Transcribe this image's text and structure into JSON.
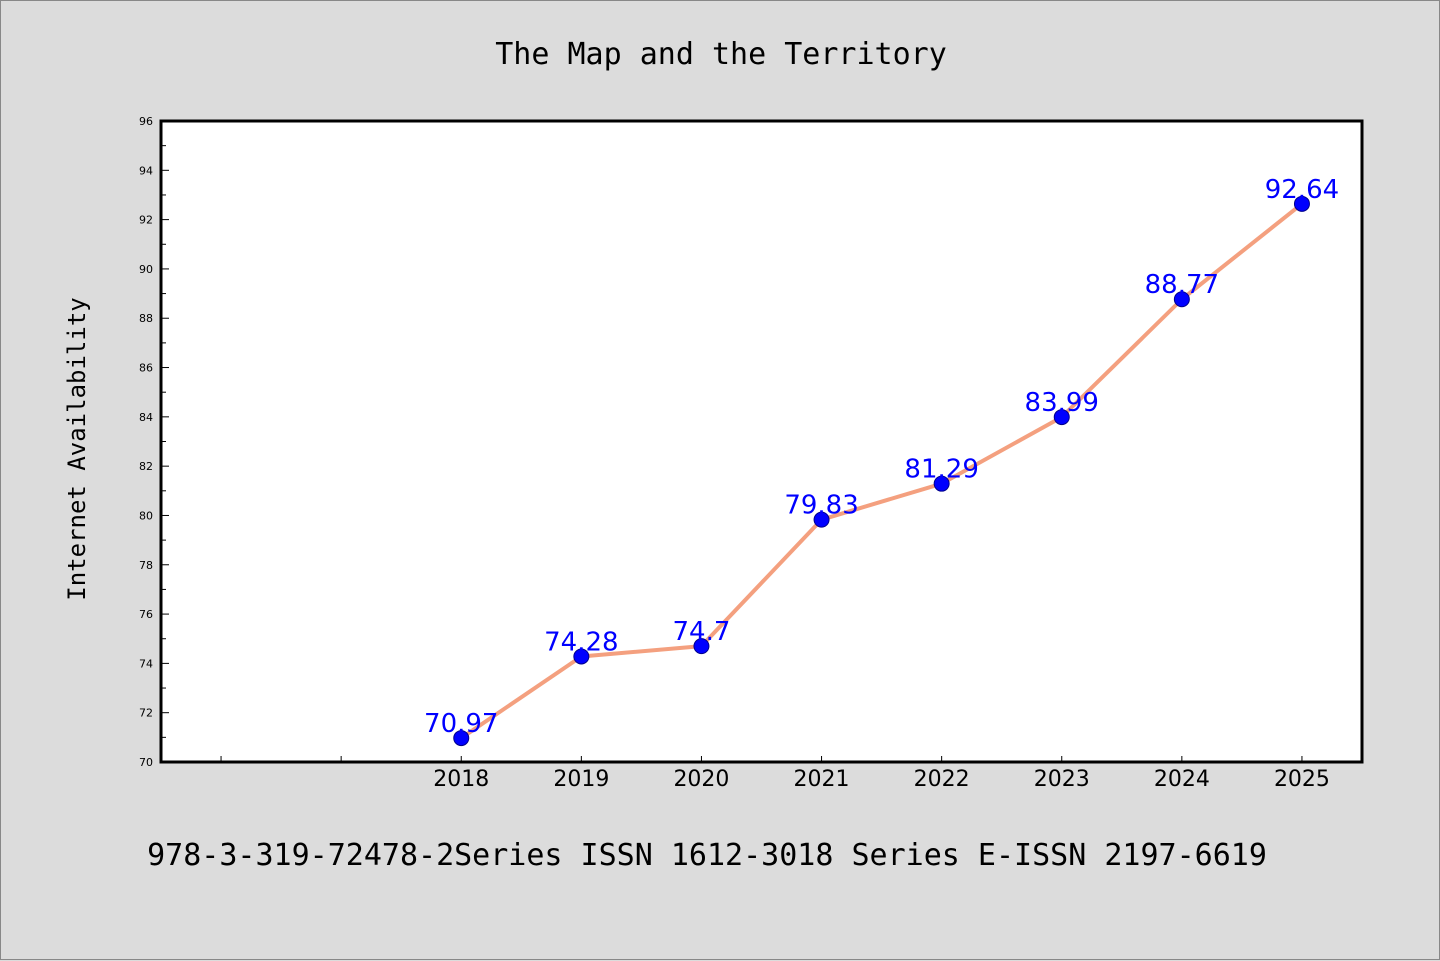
{
  "chart_data": {
    "type": "line",
    "title": "The Map and the Territory",
    "ylabel": "Internet Availability",
    "xlabel": "",
    "footer": "978-3-319-72478-2Series ISSN 1612-3018 Series E-ISSN 2197-6619",
    "x_axis_start": 2016,
    "x": [
      2018,
      2019,
      2020,
      2021,
      2022,
      2023,
      2024,
      2025
    ],
    "series": [
      {
        "values": [
          70.97,
          74.28,
          74.7,
          79.83,
          81.29,
          83.99,
          88.77,
          92.64
        ]
      }
    ],
    "data_labels": [
      "70.97",
      "74.28",
      "74.7",
      "79.83",
      "81.29",
      "83.99",
      "88.77",
      "92.64"
    ],
    "xtick_labels": [
      "2018",
      "2019",
      "2020",
      "2021",
      "2022",
      "2023",
      "2024",
      "2025"
    ],
    "ytick_labels": [
      "70",
      "72",
      "74",
      "76",
      "78",
      "80",
      "82",
      "84",
      "86",
      "88",
      "90",
      "92",
      "94",
      "96"
    ],
    "ylim": [
      70,
      96
    ],
    "xlim": [
      2015.5,
      2025.5
    ],
    "grid": false,
    "line_color": "#f4a07f",
    "marker_color": "#0000ff",
    "label_color": "#0000ff",
    "background_color": "#dcdcdc",
    "plot_background": "#ffffff"
  }
}
